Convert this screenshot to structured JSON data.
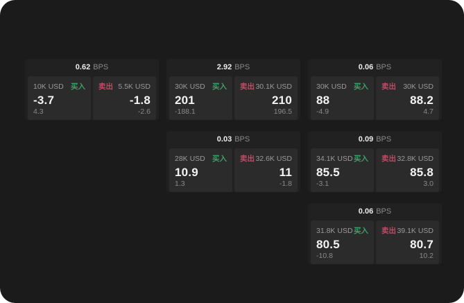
{
  "labels": {
    "bps_unit": "BPS",
    "buy": "买入",
    "sell": "卖出"
  },
  "colors": {
    "buy": "#3da065",
    "sell": "#bb4d64",
    "page_bg": "#1b1b1b",
    "card_bg": "#212121",
    "panel_bg": "#2b2b2b"
  },
  "cards": [
    {
      "bps": "0.62",
      "buy": {
        "amount": "10K USD",
        "price": "-3.7",
        "delta": "4.3"
      },
      "sell": {
        "amount": "5.5K USD",
        "price": "-1.8",
        "delta": "-2.6"
      }
    },
    {
      "bps": "2.92",
      "buy": {
        "amount": "30K USD",
        "price": "201",
        "delta": "-188.1"
      },
      "sell": {
        "amount": "30.1K USD",
        "price": "210",
        "delta": "196.5"
      }
    },
    {
      "bps": "0.06",
      "buy": {
        "amount": "30K USD",
        "price": "88",
        "delta": "-4.9"
      },
      "sell": {
        "amount": "30K USD",
        "price": "88.2",
        "delta": "4.7"
      }
    },
    {
      "bps": "0.03",
      "buy": {
        "amount": "28K USD",
        "price": "10.9",
        "delta": "1.3"
      },
      "sell": {
        "amount": "32.6K USD",
        "price": "11",
        "delta": "-1.8"
      }
    },
    {
      "bps": "0.09",
      "buy": {
        "amount": "34.1K USD",
        "price": "85.5",
        "delta": "-3.1"
      },
      "sell": {
        "amount": "32.8K USD",
        "price": "85.8",
        "delta": "3.0"
      }
    },
    {
      "bps": "0.06",
      "buy": {
        "amount": "31.8K USD",
        "price": "80.5",
        "delta": "-10.8"
      },
      "sell": {
        "amount": "39.1K USD",
        "price": "80.7",
        "delta": "10.2"
      }
    }
  ]
}
